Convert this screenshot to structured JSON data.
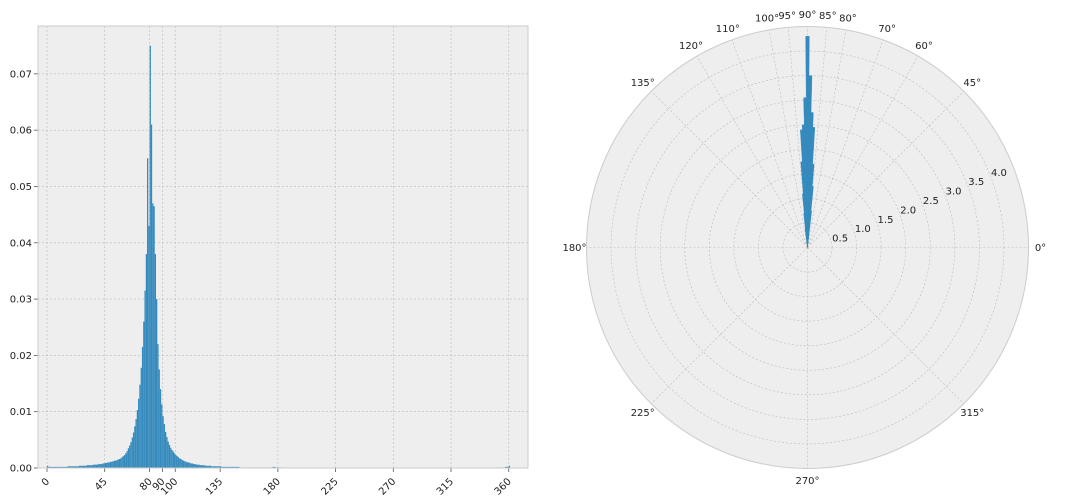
{
  "colors": {
    "bar": "#348ABD",
    "plot_bg": "#EEEEEE",
    "grid": "#BBBBBB",
    "frame": "#CCCCCC",
    "text": "#222222"
  },
  "chart_data": [
    {
      "type": "histogram",
      "xlim": [
        -7,
        375
      ],
      "ylim": [
        0,
        0.0785
      ],
      "grid": true,
      "x_ticks": [
        {
          "value": 0,
          "label": "0"
        },
        {
          "value": 45,
          "label": "45"
        },
        {
          "value": 80,
          "label": "80"
        },
        {
          "value": 90,
          "label": "90"
        },
        {
          "value": 100,
          "label": "100"
        },
        {
          "value": 135,
          "label": "135"
        },
        {
          "value": 180,
          "label": "180"
        },
        {
          "value": 225,
          "label": "225"
        },
        {
          "value": 270,
          "label": "270"
        },
        {
          "value": 315,
          "label": "315"
        },
        {
          "value": 360,
          "label": "360"
        }
      ],
      "y_ticks": [
        {
          "value": 0,
          "label": "0.00"
        },
        {
          "value": 0.01,
          "label": "0.01"
        },
        {
          "value": 0.02,
          "label": "0.02"
        },
        {
          "value": 0.03,
          "label": "0.03"
        },
        {
          "value": 0.04,
          "label": "0.04"
        },
        {
          "value": 0.05,
          "label": "0.05"
        },
        {
          "value": 0.06,
          "label": "0.06"
        },
        {
          "value": 0.07,
          "label": "0.07"
        }
      ],
      "bins": [
        [
          0,
          0.0004
        ],
        [
          1,
          0.0002
        ],
        [
          2,
          0.0002
        ],
        [
          3,
          0.0002
        ],
        [
          4,
          0.0002
        ],
        [
          5,
          0.0002
        ],
        [
          6,
          0.0002
        ],
        [
          7,
          0.0002
        ],
        [
          8,
          0.0002
        ],
        [
          9,
          0.0002
        ],
        [
          10,
          0.0002
        ],
        [
          11,
          0.0002
        ],
        [
          12,
          0.0002
        ],
        [
          13,
          0.0002
        ],
        [
          14,
          0.0002
        ],
        [
          15,
          0.0002
        ],
        [
          16,
          0.0003
        ],
        [
          17,
          0.0003
        ],
        [
          18,
          0.0003
        ],
        [
          19,
          0.0003
        ],
        [
          20,
          0.0003
        ],
        [
          21,
          0.0003
        ],
        [
          22,
          0.0003
        ],
        [
          23,
          0.0003
        ],
        [
          24,
          0.0003
        ],
        [
          25,
          0.0004
        ],
        [
          26,
          0.0004
        ],
        [
          27,
          0.0004
        ],
        [
          28,
          0.0004
        ],
        [
          29,
          0.0004
        ],
        [
          30,
          0.0004
        ],
        [
          31,
          0.0005
        ],
        [
          32,
          0.0005
        ],
        [
          33,
          0.0005
        ],
        [
          34,
          0.0005
        ],
        [
          35,
          0.0005
        ],
        [
          36,
          0.0006
        ],
        [
          37,
          0.0006
        ],
        [
          38,
          0.0006
        ],
        [
          39,
          0.0006
        ],
        [
          40,
          0.0007
        ],
        [
          41,
          0.0007
        ],
        [
          42,
          0.0007
        ],
        [
          43,
          0.0008
        ],
        [
          44,
          0.0008
        ],
        [
          45,
          0.0009
        ],
        [
          46,
          0.0009
        ],
        [
          47,
          0.001
        ],
        [
          48,
          0.001
        ],
        [
          49,
          0.0011
        ],
        [
          50,
          0.0011
        ],
        [
          51,
          0.0012
        ],
        [
          52,
          0.0013
        ],
        [
          53,
          0.0013
        ],
        [
          54,
          0.0014
        ],
        [
          55,
          0.0015
        ],
        [
          56,
          0.0016
        ],
        [
          57,
          0.0017
        ],
        [
          58,
          0.0019
        ],
        [
          59,
          0.0021
        ],
        [
          60,
          0.0023
        ],
        [
          61,
          0.0026
        ],
        [
          62,
          0.003
        ],
        [
          63,
          0.0035
        ],
        [
          64,
          0.004
        ],
        [
          65,
          0.0046
        ],
        [
          66,
          0.0054
        ],
        [
          67,
          0.0063
        ],
        [
          68,
          0.0074
        ],
        [
          69,
          0.0087
        ],
        [
          70,
          0.0103
        ],
        [
          71,
          0.0123
        ],
        [
          72,
          0.0148
        ],
        [
          73,
          0.0178
        ],
        [
          74,
          0.0215
        ],
        [
          75,
          0.026
        ],
        [
          76,
          0.0315
        ],
        [
          77,
          0.038
        ],
        [
          78,
          0.055
        ],
        [
          79,
          0.043
        ],
        [
          80,
          0.075
        ],
        [
          81,
          0.061
        ],
        [
          82,
          0.047
        ],
        [
          83,
          0.0465
        ],
        [
          84,
          0.038
        ],
        [
          85,
          0.03
        ],
        [
          86,
          0.022
        ],
        [
          87,
          0.0175
        ],
        [
          88,
          0.014
        ],
        [
          89,
          0.0113
        ],
        [
          90,
          0.0092
        ],
        [
          91,
          0.0078
        ],
        [
          92,
          0.0064
        ],
        [
          93,
          0.0055
        ],
        [
          94,
          0.0047
        ],
        [
          95,
          0.0041
        ],
        [
          96,
          0.0036
        ],
        [
          97,
          0.0032
        ],
        [
          98,
          0.0029
        ],
        [
          99,
          0.0026
        ],
        [
          100,
          0.0023
        ],
        [
          101,
          0.0021
        ],
        [
          102,
          0.0019
        ],
        [
          103,
          0.0017
        ],
        [
          104,
          0.0016
        ],
        [
          105,
          0.0014
        ],
        [
          106,
          0.0013
        ],
        [
          107,
          0.0012
        ],
        [
          108,
          0.0011
        ],
        [
          109,
          0.001
        ],
        [
          110,
          0.001
        ],
        [
          111,
          0.0009
        ],
        [
          112,
          0.0008
        ],
        [
          113,
          0.0008
        ],
        [
          114,
          0.0007
        ],
        [
          115,
          0.0007
        ],
        [
          116,
          0.0006
        ],
        [
          117,
          0.0006
        ],
        [
          118,
          0.0006
        ],
        [
          119,
          0.0005
        ],
        [
          120,
          0.0005
        ],
        [
          121,
          0.0005
        ],
        [
          122,
          0.0005
        ],
        [
          123,
          0.0004
        ],
        [
          124,
          0.0004
        ],
        [
          125,
          0.0004
        ],
        [
          126,
          0.0004
        ],
        [
          127,
          0.0004
        ],
        [
          128,
          0.0003
        ],
        [
          129,
          0.0003
        ],
        [
          130,
          0.0003
        ],
        [
          131,
          0.0003
        ],
        [
          132,
          0.0003
        ],
        [
          133,
          0.0003
        ],
        [
          134,
          0.0003
        ],
        [
          135,
          0.0003
        ],
        [
          136,
          0.0002
        ],
        [
          137,
          0.0002
        ],
        [
          138,
          0.0002
        ],
        [
          139,
          0.0002
        ],
        [
          140,
          0.0002
        ],
        [
          141,
          0.0002
        ],
        [
          142,
          0.0002
        ],
        [
          143,
          0.0002
        ],
        [
          144,
          0.0002
        ],
        [
          145,
          0.0002
        ],
        [
          146,
          0.0002
        ],
        [
          147,
          0.0002
        ],
        [
          148,
          0.0002
        ],
        [
          149,
          0.0002
        ],
        [
          150,
          0.0001
        ],
        [
          151,
          0.0001
        ],
        [
          152,
          0.0001
        ],
        [
          153,
          0.0001
        ],
        [
          154,
          0.0001
        ],
        [
          155,
          0.0001
        ],
        [
          156,
          0.0001
        ],
        [
          157,
          0.0001
        ],
        [
          158,
          0.0001
        ],
        [
          159,
          0.0001
        ],
        [
          160,
          0.0001
        ],
        [
          161,
          0.0001
        ],
        [
          162,
          0.0001
        ],
        [
          163,
          0.0001
        ],
        [
          164,
          0.0001
        ],
        [
          165,
          0.0001
        ],
        [
          166,
          0.0001
        ],
        [
          167,
          0.0001
        ],
        [
          168,
          0.0001
        ],
        [
          169,
          0.0001
        ],
        [
          170,
          0.0001
        ],
        [
          171,
          0.0001
        ],
        [
          172,
          0.0001
        ],
        [
          173,
          0.0001
        ],
        [
          174,
          0.0001
        ],
        [
          175,
          0.0001
        ],
        [
          176,
          0.0002
        ],
        [
          177,
          0.0002
        ],
        [
          178,
          0.0001
        ],
        [
          179,
          0.0001
        ],
        [
          180,
          0.0001
        ],
        [
          181,
          0.0001
        ],
        [
          182,
          0.0001
        ],
        [
          183,
          0.0001
        ],
        [
          184,
          0.0001
        ],
        [
          185,
          0.0001
        ],
        [
          350,
          0.0001
        ],
        [
          351,
          0.0001
        ],
        [
          352,
          0.0001
        ],
        [
          353,
          0.0001
        ],
        [
          354,
          0.0001
        ],
        [
          355,
          0.0001
        ],
        [
          356,
          0.0001
        ],
        [
          357,
          0.0002
        ],
        [
          358,
          0.0002
        ],
        [
          359,
          0.0002
        ],
        [
          360,
          0.0004
        ]
      ]
    },
    {
      "type": "polar_bar",
      "rmax": 4.5,
      "grid": true,
      "angle_ticks": [
        {
          "value": 0,
          "label": "0°"
        },
        {
          "value": 45,
          "label": "45°"
        },
        {
          "value": 60,
          "label": "60°"
        },
        {
          "value": 70,
          "label": "70°"
        },
        {
          "value": 80,
          "label": "80°"
        },
        {
          "value": 85,
          "label": "85°"
        },
        {
          "value": 90,
          "label": "90°"
        },
        {
          "value": 95,
          "label": "95°"
        },
        {
          "value": 100,
          "label": "100°"
        },
        {
          "value": 110,
          "label": "110°"
        },
        {
          "value": 120,
          "label": "120°"
        },
        {
          "value": 135,
          "label": "135°"
        },
        {
          "value": 180,
          "label": "180°"
        },
        {
          "value": 225,
          "label": "225°"
        },
        {
          "value": 270,
          "label": "270°"
        },
        {
          "value": 315,
          "label": "315°"
        }
      ],
      "radial_ticks": [
        {
          "value": 0.5,
          "label": "0.5"
        },
        {
          "value": 1.0,
          "label": "1.0"
        },
        {
          "value": 1.5,
          "label": "1.5"
        },
        {
          "value": 2.0,
          "label": "2.0"
        },
        {
          "value": 2.5,
          "label": "2.5"
        },
        {
          "value": 3.0,
          "label": "3.0"
        },
        {
          "value": 3.5,
          "label": "3.5"
        },
        {
          "value": 4.0,
          "label": "4.0"
        }
      ],
      "radial_label_angle": 22.5,
      "bars": [
        {
          "theta": 84,
          "width": 1,
          "r": 0.75
        },
        {
          "theta": 85,
          "width": 1,
          "r": 1.25
        },
        {
          "theta": 86,
          "width": 1,
          "r": 1.7
        },
        {
          "theta": 87,
          "width": 1,
          "r": 2.45
        },
        {
          "theta": 88,
          "width": 1,
          "r": 2.75
        },
        {
          "theta": 89,
          "width": 1,
          "r": 3.5
        },
        {
          "theta": 90,
          "width": 1,
          "r": 4.3
        },
        {
          "theta": 91,
          "width": 1,
          "r": 3.05
        },
        {
          "theta": 92,
          "width": 1,
          "r": 2.5
        },
        {
          "theta": 93,
          "width": 1,
          "r": 2.4
        },
        {
          "theta": 94,
          "width": 1,
          "r": 1.75
        },
        {
          "theta": 95,
          "width": 1,
          "r": 1.1
        },
        {
          "theta": 96,
          "width": 1,
          "r": 0.7
        },
        {
          "theta": 97,
          "width": 1,
          "r": 0.4
        }
      ]
    }
  ]
}
